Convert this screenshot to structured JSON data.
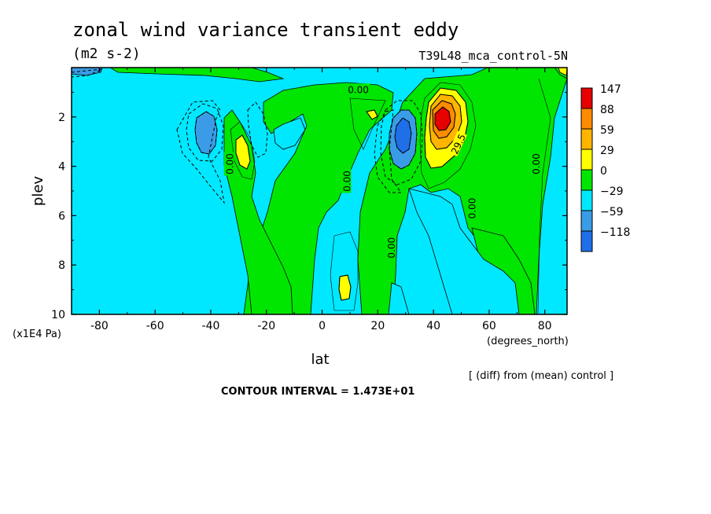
{
  "title": "zonal wind variance transient eddy",
  "units": "(m2 s-2)",
  "experiment": "T39L48_mca_control-5N",
  "note": "[ (diff) from (mean) control ]",
  "contour_interval": "CONTOUR INTERVAL = 1.473E+01",
  "colors": {
    "c_neg3": "#1f6fe8",
    "c_neg2": "#3a9ce6",
    "c_neg1": "#00e8ff",
    "c_pos1": "#00e600",
    "c_pos2": "#ffff00",
    "c_pos3": "#ffb400",
    "c_pos4": "#e60000",
    "c_pos3b": "#ff8c00"
  },
  "chart_data": {
    "type": "contour",
    "xlabel": "lat",
    "xunits": "(degrees_north)",
    "ylabel": "plev",
    "yunits": "(x1E4 Pa)",
    "xlim": [
      -90,
      88
    ],
    "ylim": [
      10,
      0
    ],
    "x_ticks": [
      -80,
      -60,
      -40,
      -20,
      0,
      20,
      40,
      60,
      80
    ],
    "y_ticks": [
      2,
      4,
      6,
      8,
      10
    ],
    "contour_labels": [
      "0.00",
      "0.00",
      "0.00",
      "0.00",
      "0.00",
      "0.00",
      "29.5"
    ],
    "colorbar": {
      "labels": [
        "147",
        "88",
        "59",
        "29",
        "0",
        "−29",
        "−59",
        "−118"
      ]
    },
    "features": [
      {
        "name": "positive max",
        "lat": 42,
        "plev": 2.3
      },
      {
        "name": "negative min",
        "lat": 29,
        "plev": 2.9
      },
      {
        "name": "negative min",
        "lat": -40,
        "plev": 2.7
      },
      {
        "name": "positive max",
        "lat": -28,
        "plev": 3.3
      }
    ]
  }
}
